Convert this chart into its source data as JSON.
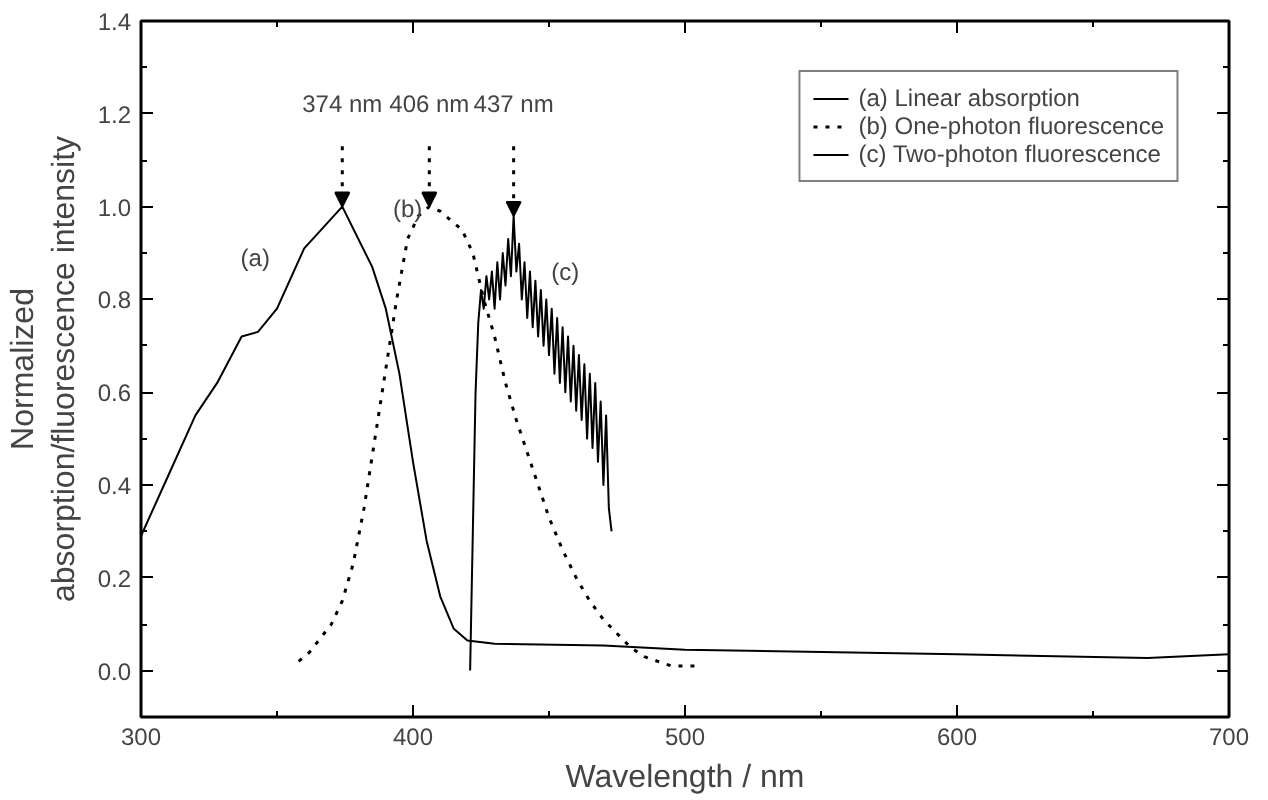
{
  "chart_data": {
    "type": "line",
    "xlabel": "Wavelength / nm",
    "ylabel": "Normalized\nabsorption/fluorescence intensity",
    "xlim": [
      300,
      700
    ],
    "xticks": [
      300,
      400,
      500,
      600,
      700
    ],
    "ylim": [
      -0.1,
      1.4
    ],
    "yticks": [
      {
        "value": 0,
        "label": "0.0"
      },
      0.2,
      0.4,
      0.6,
      0.8,
      {
        "value": 1,
        "label": "1.0"
      },
      1.2,
      1.4
    ],
    "grid": false,
    "legend": "top right",
    "marker": "none",
    "series": [
      {
        "name": "(a) Linear absorption",
        "color": "#000000",
        "line_style": "solid",
        "x": [
          300,
          310,
          320,
          328,
          337,
          343,
          350,
          360,
          374,
          385,
          390,
          395,
          400,
          405,
          410,
          415,
          420,
          430,
          470,
          500,
          600,
          670,
          700
        ],
        "values": [
          0.29,
          0.42,
          0.55,
          0.62,
          0.72,
          0.73,
          0.78,
          0.91,
          1.0,
          0.87,
          0.78,
          0.64,
          0.45,
          0.28,
          0.16,
          0.09,
          0.065,
          0.058,
          0.054,
          0.045,
          0.035,
          0.027,
          0.035
        ]
      },
      {
        "name": "(b) One-photon fluorescence",
        "color": "#000000",
        "line_style": "dotted",
        "x": [
          358,
          362,
          366,
          370,
          374,
          378,
          382,
          386,
          390,
          394,
          398,
          402,
          406,
          410,
          414,
          418,
          422,
          426,
          430,
          434,
          438,
          442,
          446,
          450,
          455,
          460,
          465,
          470,
          475,
          480,
          485,
          490,
          495,
          500,
          504
        ],
        "values": [
          0.02,
          0.04,
          0.07,
          0.1,
          0.15,
          0.23,
          0.35,
          0.5,
          0.65,
          0.8,
          0.93,
          0.98,
          1.0,
          0.99,
          0.97,
          0.95,
          0.9,
          0.8,
          0.72,
          0.62,
          0.54,
          0.47,
          0.4,
          0.33,
          0.26,
          0.2,
          0.15,
          0.11,
          0.08,
          0.05,
          0.03,
          0.02,
          0.01,
          0.01,
          0.01
        ]
      },
      {
        "name": "(c) Two-photon fluorescence",
        "color": "#000000",
        "line_style": "solid",
        "x": [
          421,
          422,
          423,
          424,
          425,
          426,
          427,
          428,
          429,
          430,
          431,
          432,
          433,
          434,
          435,
          436,
          437,
          438,
          439,
          440,
          441,
          442,
          443,
          444,
          445,
          446,
          447,
          448,
          449,
          450,
          451,
          452,
          453,
          454,
          455,
          456,
          457,
          458,
          459,
          460,
          461,
          462,
          463,
          464,
          465,
          466,
          467,
          468,
          469,
          470,
          471,
          472,
          473
        ],
        "values": [
          0.0,
          0.3,
          0.6,
          0.75,
          0.82,
          0.78,
          0.85,
          0.8,
          0.86,
          0.78,
          0.88,
          0.8,
          0.9,
          0.83,
          0.93,
          0.85,
          0.98,
          0.86,
          0.92,
          0.8,
          0.88,
          0.76,
          0.86,
          0.74,
          0.84,
          0.72,
          0.82,
          0.7,
          0.8,
          0.68,
          0.78,
          0.64,
          0.76,
          0.62,
          0.74,
          0.6,
          0.72,
          0.58,
          0.7,
          0.56,
          0.68,
          0.54,
          0.66,
          0.5,
          0.64,
          0.48,
          0.62,
          0.45,
          0.58,
          0.4,
          0.55,
          0.35,
          0.3
        ]
      }
    ],
    "annotations": [
      {
        "text": "374 nm",
        "x": 374,
        "y": 1.0
      },
      {
        "text": "406 nm",
        "x": 406,
        "y": 1.0
      },
      {
        "text": "437 nm",
        "x": 437,
        "y": 0.98
      },
      "(a)",
      "(b)",
      "(c)"
    ]
  }
}
